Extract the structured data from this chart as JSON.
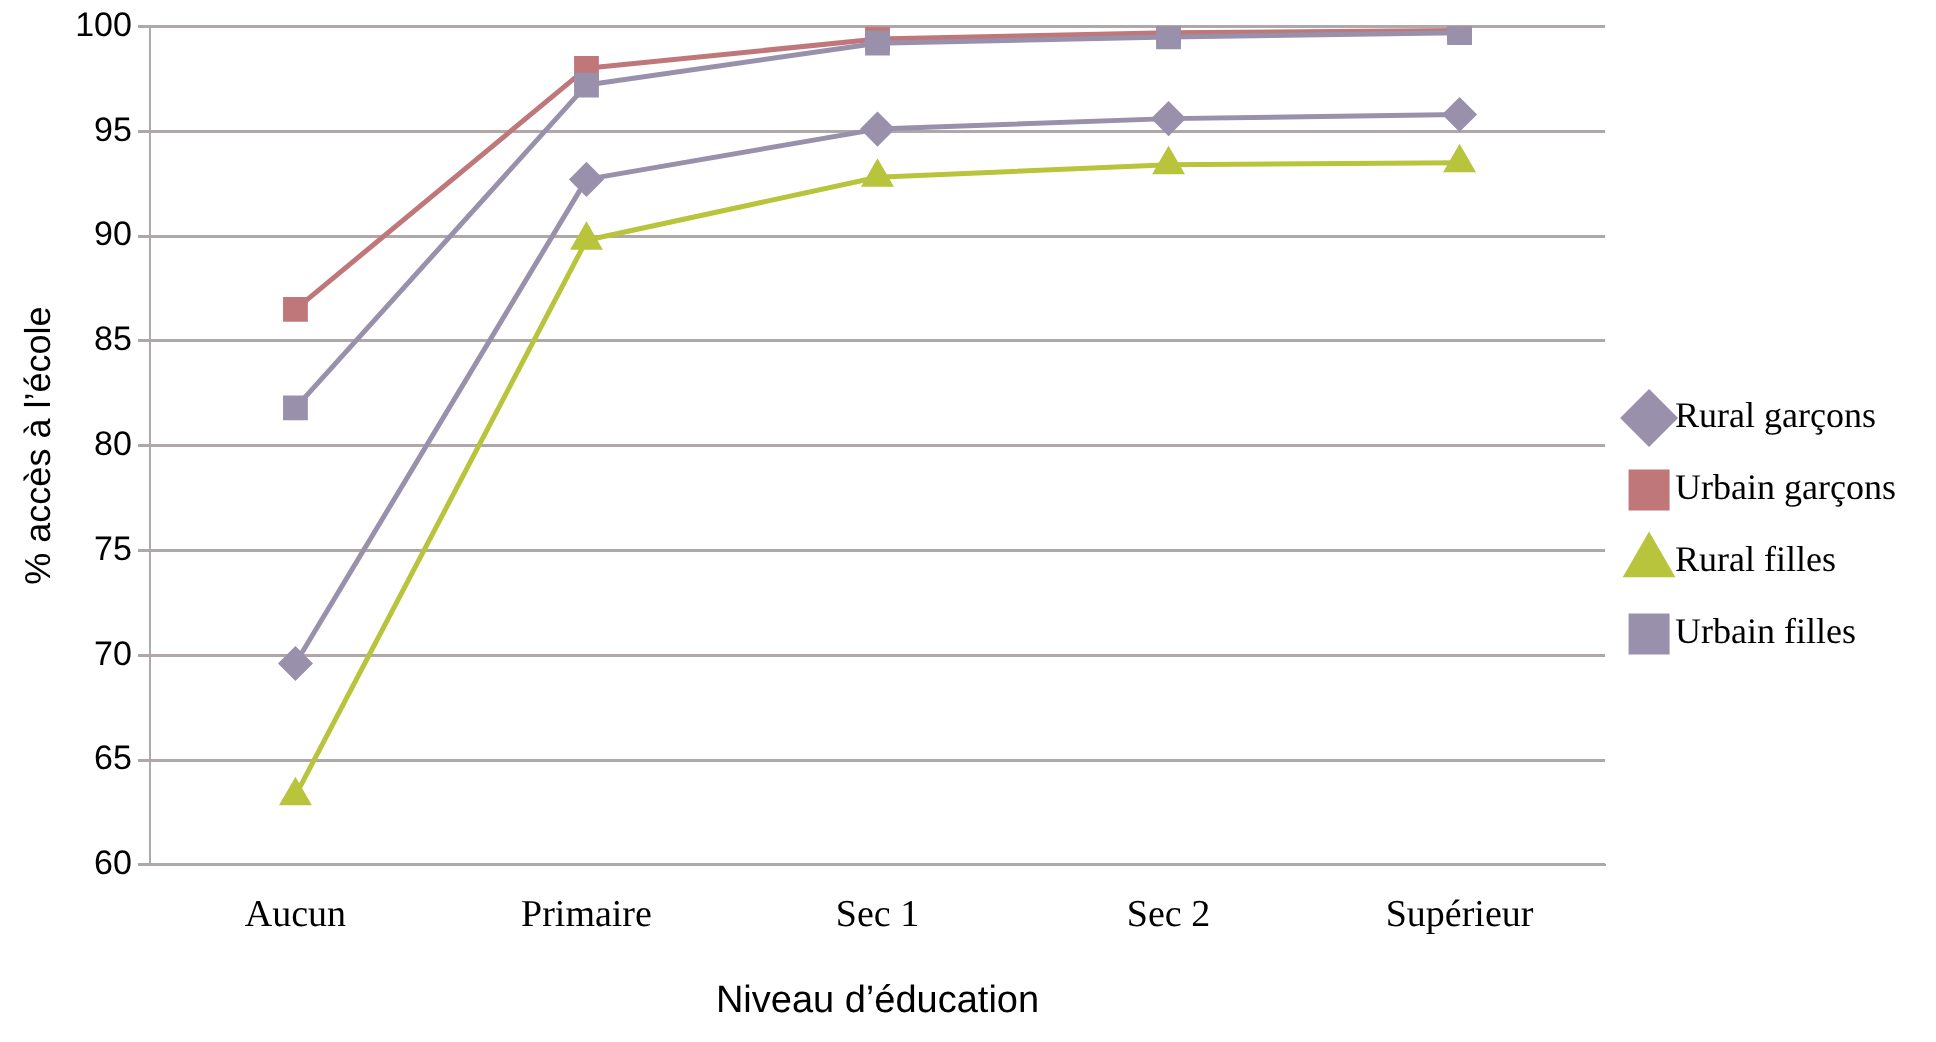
{
  "chart_data": {
    "type": "line",
    "xlabel": "Niveau d’éducation",
    "ylabel": "% accès à l’école",
    "categories": [
      "Aucun",
      "Primaire",
      "Sec 1",
      "Sec 2",
      "Supérieur"
    ],
    "series": [
      {
        "name": "Rural garçons",
        "color": "#9990ac",
        "marker": "diamond",
        "values": [
          69.6,
          92.7,
          95.1,
          95.6,
          95.8
        ]
      },
      {
        "name": "Urbain garçons",
        "color": "#c0777a",
        "marker": "square",
        "values": [
          86.5,
          98.0,
          99.4,
          99.7,
          99.8
        ]
      },
      {
        "name": "Rural filles",
        "color": "#b8c43c",
        "marker": "triangle",
        "values": [
          63.3,
          89.8,
          92.8,
          93.4,
          93.5
        ]
      },
      {
        "name": "Urbain filles",
        "color": "#9990ac",
        "marker": "square",
        "values": [
          81.8,
          97.2,
          99.2,
          99.5,
          99.7
        ]
      }
    ],
    "ylim": [
      60,
      100
    ],
    "yticks": [
      60,
      65,
      70,
      75,
      80,
      85,
      90,
      95,
      100
    ],
    "grid": "y",
    "legend": "right",
    "line_style": "solid"
  }
}
